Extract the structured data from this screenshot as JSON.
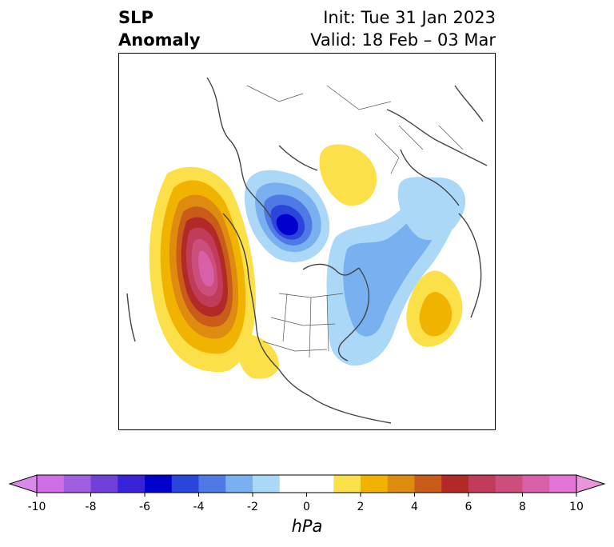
{
  "header": {
    "title_line1": "SLP",
    "title_line2": "Anomaly",
    "init_line": "Init: Tue 31 Jan 2023",
    "valid_line": "Valid: 18 Feb – 03 Mar"
  },
  "colorbar": {
    "unit": "hPa",
    "tick_labels": [
      "-10",
      "-8",
      "-6",
      "-4",
      "-2",
      "0",
      "2",
      "4",
      "6",
      "8",
      "10"
    ],
    "min": -10,
    "max": 10,
    "extend": "both",
    "colors": [
      "#d06ee6",
      "#a05ee0",
      "#7040d8",
      "#3a22d8",
      "#0000cc",
      "#2a44dc",
      "#4f7ae6",
      "#78b0f0",
      "#acd8f8",
      "#ffffff",
      "#ffffff",
      "#fbe04a",
      "#f0b400",
      "#de8c10",
      "#c85c18",
      "#b22a28",
      "#c03c58",
      "#cc4e7c",
      "#d860a8",
      "#e474d8"
    ],
    "under_color": "#d78ae8",
    "over_color": "#e896dc"
  },
  "map": {
    "projection": "north-polar-stereographic",
    "region": "Northern Hemisphere",
    "anomaly_features": [
      {
        "name": "positive anomaly west of North America (Gulf of Alaska / NE Pacific)",
        "peak_hPa": 9
      },
      {
        "name": "negative anomaly over Beaufort Sea / Arctic",
        "peak_hPa": -6
      },
      {
        "name": "negative anomaly Greenland to Eastern Canada and North Atlantic",
        "peak_hPa": -2
      },
      {
        "name": "negative anomaly over Scandinavia / northern Russia",
        "peak_hPa": -2
      },
      {
        "name": "positive anomaly over East Siberia / Yakutia",
        "peak_hPa": 2
      },
      {
        "name": "positive anomaly over western Europe / North Atlantic east",
        "peak_hPa": 3
      },
      {
        "name": "positive anomaly over western United States",
        "peak_hPa": 1
      }
    ]
  }
}
